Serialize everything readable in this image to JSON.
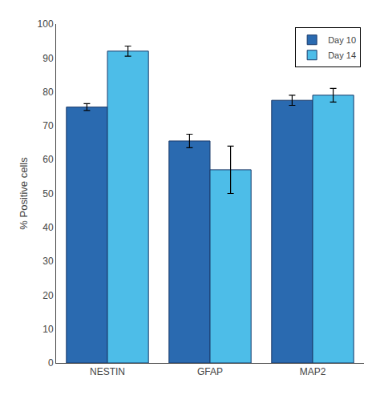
{
  "chart_data": {
    "type": "bar",
    "ylabel": "% Positive cells",
    "categories": [
      "NESTIN",
      "GFAP",
      "MAP2"
    ],
    "series": [
      {
        "name": "Day 10",
        "color": "#2a6ab0",
        "values": [
          75.5,
          65.5,
          77.5
        ],
        "errors": [
          1.0,
          2.0,
          1.5
        ]
      },
      {
        "name": "Day 14",
        "color": "#4dbde8",
        "values": [
          92.0,
          57.0,
          79.0
        ],
        "errors": [
          1.5,
          7.0,
          2.0
        ]
      }
    ],
    "ylim": [
      0,
      100
    ],
    "yticks": [
      0,
      10,
      20,
      30,
      40,
      50,
      60,
      70,
      80,
      90,
      100
    ],
    "grid": false,
    "legend": "upper right"
  }
}
